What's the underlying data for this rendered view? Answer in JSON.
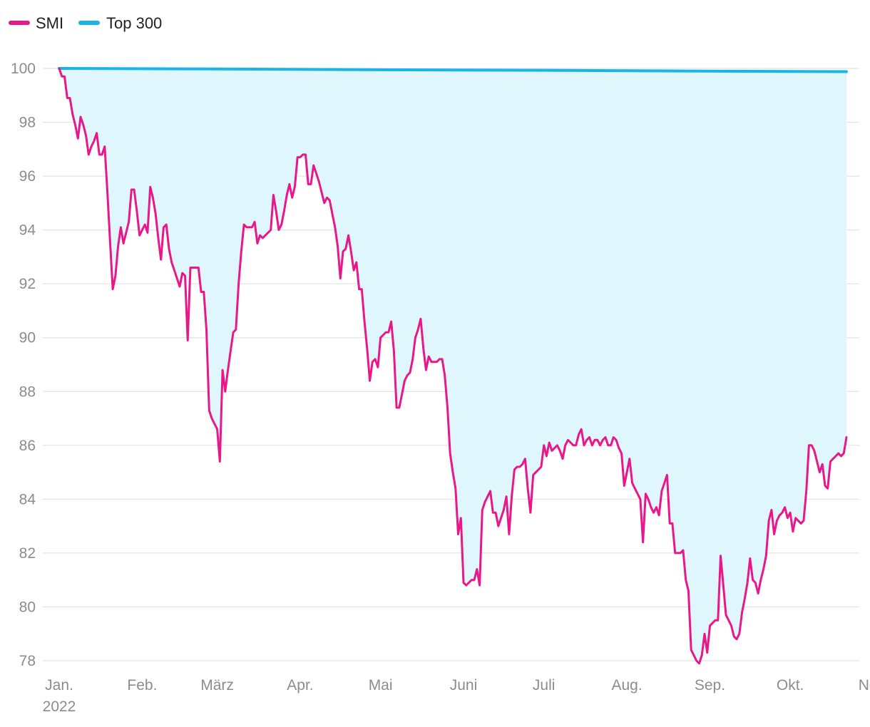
{
  "chart_data": {
    "type": "line",
    "title": "",
    "xlabel": "",
    "ylabel": "",
    "ylim": [
      77.5,
      100.5
    ],
    "y_ticks": [
      100,
      98,
      96,
      94,
      92,
      90,
      88,
      86,
      84,
      82,
      80,
      78
    ],
    "x_ticks": [
      {
        "label": "Jan.",
        "sublabel": "2022",
        "day": 0
      },
      {
        "label": "Feb.",
        "sublabel": "",
        "day": 31
      },
      {
        "label": "März",
        "sublabel": "",
        "day": 59
      },
      {
        "label": "Apr.",
        "sublabel": "",
        "day": 90
      },
      {
        "label": "Mai",
        "sublabel": "",
        "day": 120
      },
      {
        "label": "Juni",
        "sublabel": "",
        "day": 151
      },
      {
        "label": "Juli",
        "sublabel": "",
        "day": 181
      },
      {
        "label": "Aug.",
        "sublabel": "",
        "day": 212
      },
      {
        "label": "Sep.",
        "sublabel": "",
        "day": 243
      },
      {
        "label": "Okt.",
        "sublabel": "",
        "day": 273
      },
      {
        "label": "Nov.",
        "sublabel": "",
        "day": 304
      }
    ],
    "grid": true,
    "legend_position": "top-left",
    "area_fill_between_series": true,
    "colors": {
      "SMI": "#e8178a",
      "Top 300": "#19b5e6",
      "area": "#dff6fd",
      "grid": "#e3e3e3",
      "tick": "#8c8c8c"
    },
    "series": [
      {
        "name": "SMI",
        "color": "#e8178a",
        "points": [
          [
            0,
            100.0
          ],
          [
            1,
            99.7
          ],
          [
            2,
            99.7
          ],
          [
            3,
            98.9
          ],
          [
            4,
            98.9
          ],
          [
            5,
            98.3
          ],
          [
            6,
            97.9
          ],
          [
            7,
            97.4
          ],
          [
            8,
            98.2
          ],
          [
            9,
            97.9
          ],
          [
            10,
            97.5
          ],
          [
            11,
            96.8
          ],
          [
            12,
            97.1
          ],
          [
            13,
            97.3
          ],
          [
            14,
            97.6
          ],
          [
            15,
            96.8
          ],
          [
            16,
            96.8
          ],
          [
            17,
            97.1
          ],
          [
            18,
            95.4
          ],
          [
            19,
            93.6
          ],
          [
            20,
            91.8
          ],
          [
            21,
            92.3
          ],
          [
            22,
            93.4
          ],
          [
            23,
            94.1
          ],
          [
            24,
            93.5
          ],
          [
            25,
            93.9
          ],
          [
            26,
            94.3
          ],
          [
            27,
            95.5
          ],
          [
            28,
            95.5
          ],
          [
            29,
            94.7
          ],
          [
            30,
            93.8
          ],
          [
            31,
            94.0
          ],
          [
            32,
            94.2
          ],
          [
            33,
            93.9
          ],
          [
            34,
            95.6
          ],
          [
            35,
            95.2
          ],
          [
            36,
            94.6
          ],
          [
            37,
            93.7
          ],
          [
            38,
            92.9
          ],
          [
            39,
            94.1
          ],
          [
            40,
            94.2
          ],
          [
            41,
            93.3
          ],
          [
            42,
            92.8
          ],
          [
            43,
            92.5
          ],
          [
            44,
            92.2
          ],
          [
            45,
            91.9
          ],
          [
            46,
            92.4
          ],
          [
            47,
            92.3
          ],
          [
            48,
            89.9
          ],
          [
            49,
            92.6
          ],
          [
            50,
            92.6
          ],
          [
            51,
            92.6
          ],
          [
            52,
            92.6
          ],
          [
            53,
            91.7
          ],
          [
            54,
            91.7
          ],
          [
            55,
            90.3
          ],
          [
            56,
            87.3
          ],
          [
            57,
            87.0
          ],
          [
            58,
            86.8
          ],
          [
            59,
            86.6
          ],
          [
            60,
            85.4
          ],
          [
            61,
            88.8
          ],
          [
            62,
            88.0
          ],
          [
            63,
            88.8
          ],
          [
            64,
            89.5
          ],
          [
            65,
            90.2
          ],
          [
            66,
            90.3
          ],
          [
            67,
            92.0
          ],
          [
            68,
            93.2
          ],
          [
            69,
            94.2
          ],
          [
            70,
            94.1
          ],
          [
            71,
            94.1
          ],
          [
            72,
            94.1
          ],
          [
            73,
            94.3
          ],
          [
            74,
            93.5
          ],
          [
            75,
            93.8
          ],
          [
            76,
            93.7
          ],
          [
            77,
            93.8
          ],
          [
            78,
            93.9
          ],
          [
            79,
            94.0
          ],
          [
            80,
            95.3
          ],
          [
            81,
            94.7
          ],
          [
            82,
            94.0
          ],
          [
            83,
            94.2
          ],
          [
            84,
            94.7
          ],
          [
            85,
            95.3
          ],
          [
            86,
            95.7
          ],
          [
            87,
            95.2
          ],
          [
            88,
            95.6
          ],
          [
            89,
            96.7
          ],
          [
            90,
            96.7
          ],
          [
            91,
            96.8
          ],
          [
            92,
            96.8
          ],
          [
            93,
            95.7
          ],
          [
            94,
            95.7
          ],
          [
            95,
            96.4
          ],
          [
            96,
            96.1
          ],
          [
            97,
            95.8
          ],
          [
            98,
            95.4
          ],
          [
            99,
            95.0
          ],
          [
            100,
            95.2
          ],
          [
            101,
            95.1
          ],
          [
            102,
            94.6
          ],
          [
            103,
            94.1
          ],
          [
            104,
            93.4
          ],
          [
            105,
            92.2
          ],
          [
            106,
            93.2
          ],
          [
            107,
            93.3
          ],
          [
            108,
            93.8
          ],
          [
            109,
            93.2
          ],
          [
            110,
            92.5
          ],
          [
            111,
            92.8
          ],
          [
            112,
            91.8
          ],
          [
            113,
            91.8
          ],
          [
            114,
            90.6
          ],
          [
            115,
            89.6
          ],
          [
            116,
            88.4
          ],
          [
            117,
            89.1
          ],
          [
            118,
            89.2
          ],
          [
            119,
            88.9
          ],
          [
            120,
            90.0
          ],
          [
            121,
            90.1
          ],
          [
            122,
            90.2
          ],
          [
            123,
            90.2
          ],
          [
            124,
            90.6
          ],
          [
            125,
            89.5
          ],
          [
            126,
            87.4
          ],
          [
            127,
            87.4
          ],
          [
            128,
            87.9
          ],
          [
            129,
            88.4
          ],
          [
            130,
            88.6
          ],
          [
            131,
            88.7
          ],
          [
            132,
            89.2
          ],
          [
            133,
            90.0
          ],
          [
            134,
            90.3
          ],
          [
            135,
            90.7
          ],
          [
            136,
            89.6
          ],
          [
            137,
            88.8
          ],
          [
            138,
            89.3
          ],
          [
            139,
            89.1
          ],
          [
            140,
            89.1
          ],
          [
            141,
            89.1
          ],
          [
            142,
            89.2
          ],
          [
            143,
            89.2
          ],
          [
            144,
            88.6
          ],
          [
            145,
            87.4
          ],
          [
            146,
            85.7
          ],
          [
            147,
            85.0
          ],
          [
            148,
            84.4
          ],
          [
            149,
            82.7
          ],
          [
            150,
            83.3
          ],
          [
            151,
            80.9
          ],
          [
            152,
            80.8
          ],
          [
            153,
            80.9
          ],
          [
            154,
            81.0
          ],
          [
            155,
            81.0
          ],
          [
            156,
            81.4
          ],
          [
            157,
            80.8
          ],
          [
            158,
            83.6
          ],
          [
            159,
            83.9
          ],
          [
            160,
            84.1
          ],
          [
            161,
            84.3
          ],
          [
            162,
            83.5
          ],
          [
            163,
            83.5
          ],
          [
            164,
            83.0
          ],
          [
            165,
            83.3
          ],
          [
            166,
            83.6
          ],
          [
            167,
            84.1
          ],
          [
            168,
            82.7
          ],
          [
            169,
            84.1
          ],
          [
            170,
            85.1
          ],
          [
            171,
            85.2
          ],
          [
            172,
            85.2
          ],
          [
            173,
            85.3
          ],
          [
            174,
            85.5
          ],
          [
            175,
            84.4
          ],
          [
            176,
            83.5
          ],
          [
            177,
            84.9
          ],
          [
            178,
            85.0
          ],
          [
            179,
            85.1
          ],
          [
            180,
            85.2
          ],
          [
            181,
            86.0
          ],
          [
            182,
            85.6
          ],
          [
            183,
            86.1
          ],
          [
            184,
            85.8
          ],
          [
            185,
            85.9
          ],
          [
            186,
            86.0
          ],
          [
            187,
            85.8
          ],
          [
            188,
            85.5
          ],
          [
            189,
            86.0
          ],
          [
            190,
            86.2
          ],
          [
            191,
            86.1
          ],
          [
            192,
            86.0
          ],
          [
            193,
            86.0
          ],
          [
            194,
            86.4
          ],
          [
            195,
            86.6
          ],
          [
            196,
            86.0
          ],
          [
            197,
            86.2
          ],
          [
            198,
            86.3
          ],
          [
            199,
            86.0
          ],
          [
            200,
            86.2
          ],
          [
            201,
            86.2
          ],
          [
            202,
            86.0
          ],
          [
            203,
            86.2
          ],
          [
            204,
            86.3
          ],
          [
            205,
            86.0
          ],
          [
            206,
            86.0
          ],
          [
            207,
            86.3
          ],
          [
            208,
            86.2
          ],
          [
            209,
            85.9
          ],
          [
            210,
            85.7
          ],
          [
            211,
            84.5
          ],
          [
            212,
            85.0
          ],
          [
            213,
            85.5
          ],
          [
            214,
            84.6
          ],
          [
            215,
            84.4
          ],
          [
            216,
            84.2
          ],
          [
            217,
            84.0
          ],
          [
            218,
            82.4
          ],
          [
            219,
            84.2
          ],
          [
            220,
            84.0
          ],
          [
            221,
            83.7
          ],
          [
            222,
            83.5
          ],
          [
            223,
            83.7
          ],
          [
            224,
            83.4
          ],
          [
            225,
            84.3
          ],
          [
            226,
            84.6
          ],
          [
            227,
            84.9
          ],
          [
            228,
            83.1
          ],
          [
            229,
            83.1
          ],
          [
            230,
            82.0
          ],
          [
            231,
            82.0
          ],
          [
            232,
            82.0
          ],
          [
            233,
            82.1
          ],
          [
            234,
            81.0
          ],
          [
            235,
            80.6
          ],
          [
            236,
            78.4
          ],
          [
            237,
            78.2
          ],
          [
            238,
            78.0
          ],
          [
            239,
            77.9
          ],
          [
            240,
            78.2
          ],
          [
            241,
            79.0
          ],
          [
            242,
            78.3
          ],
          [
            243,
            79.3
          ],
          [
            244,
            79.4
          ],
          [
            245,
            79.5
          ],
          [
            246,
            79.5
          ],
          [
            247,
            81.9
          ],
          [
            248,
            80.8
          ],
          [
            249,
            79.7
          ],
          [
            250,
            79.5
          ],
          [
            251,
            79.3
          ],
          [
            252,
            78.9
          ],
          [
            253,
            78.8
          ],
          [
            254,
            79.0
          ],
          [
            255,
            79.8
          ],
          [
            256,
            80.3
          ],
          [
            257,
            80.9
          ],
          [
            258,
            81.8
          ],
          [
            259,
            81.0
          ],
          [
            260,
            80.9
          ],
          [
            261,
            80.5
          ],
          [
            262,
            81.0
          ],
          [
            263,
            81.4
          ],
          [
            264,
            81.9
          ],
          [
            265,
            83.2
          ],
          [
            266,
            83.6
          ],
          [
            267,
            82.7
          ],
          [
            268,
            83.2
          ],
          [
            269,
            83.4
          ],
          [
            270,
            83.5
          ],
          [
            271,
            83.7
          ],
          [
            272,
            83.3
          ],
          [
            273,
            83.5
          ],
          [
            274,
            82.8
          ],
          [
            275,
            83.3
          ],
          [
            276,
            83.2
          ],
          [
            277,
            83.1
          ],
          [
            278,
            83.2
          ],
          [
            279,
            84.3
          ],
          [
            280,
            86.0
          ],
          [
            281,
            86.0
          ],
          [
            282,
            85.8
          ],
          [
            283,
            85.4
          ],
          [
            284,
            85.0
          ],
          [
            285,
            85.3
          ],
          [
            286,
            84.5
          ],
          [
            287,
            84.4
          ],
          [
            288,
            85.4
          ],
          [
            289,
            85.5
          ],
          [
            290,
            85.6
          ],
          [
            291,
            85.7
          ],
          [
            292,
            85.6
          ],
          [
            293,
            85.7
          ],
          [
            294,
            86.3
          ]
        ]
      },
      {
        "name": "Top 300",
        "color": "#19b5e6",
        "points": [
          [
            0,
            100.0
          ],
          [
            60,
            99.98
          ],
          [
            120,
            99.95
          ],
          [
            180,
            99.93
          ],
          [
            240,
            99.9
          ],
          [
            294,
            99.88
          ]
        ]
      }
    ]
  },
  "legend": [
    {
      "label": "SMI",
      "color": "#e8178a"
    },
    {
      "label": "Top 300",
      "color": "#19b5e6"
    }
  ]
}
